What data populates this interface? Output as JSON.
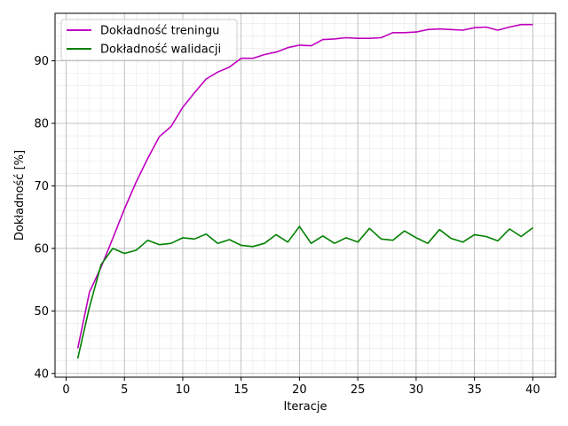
{
  "chart_data": {
    "type": "line",
    "title": "",
    "xlabel": "Iteracje",
    "ylabel": "Dokładność [%]",
    "xlim": [
      -0.95,
      41.95
    ],
    "ylim": [
      39.4,
      97.6
    ],
    "xticks": [
      0,
      5,
      10,
      15,
      20,
      25,
      30,
      35,
      40
    ],
    "yticks": [
      40,
      50,
      60,
      70,
      80,
      90
    ],
    "grid": {
      "major": true,
      "minor": true
    },
    "legend_position": "top-left",
    "x": [
      1,
      2,
      3,
      4,
      5,
      6,
      7,
      8,
      9,
      10,
      11,
      12,
      13,
      14,
      15,
      16,
      17,
      18,
      19,
      20,
      21,
      22,
      23,
      24,
      25,
      26,
      27,
      28,
      29,
      30,
      31,
      32,
      33,
      34,
      35,
      36,
      37,
      38,
      39,
      40
    ],
    "series": [
      {
        "name": "Dokładność treningu",
        "color": "#bf00bf",
        "values": [
          44.0,
          53.0,
          57.0,
          61.6,
          66.3,
          70.6,
          74.4,
          77.9,
          79.5,
          82.6,
          84.9,
          87.1,
          88.2,
          89.0,
          90.4,
          90.4,
          91.0,
          91.4,
          92.1,
          92.5,
          92.4,
          93.4,
          93.5,
          93.7,
          93.6,
          93.6,
          93.7,
          94.5,
          94.5,
          94.6,
          95.0,
          95.1,
          95.0,
          94.9,
          95.3,
          95.4,
          94.9,
          95.4,
          95.8,
          95.8
        ]
      },
      {
        "name": "Dokładność walidacji",
        "color": "#008000",
        "values": [
          42.4,
          50.6,
          57.4,
          60.0,
          59.2,
          59.7,
          61.3,
          60.6,
          60.8,
          61.7,
          61.5,
          62.3,
          60.8,
          61.4,
          60.5,
          60.3,
          60.8,
          62.2,
          61.0,
          63.5,
          60.8,
          62.0,
          60.8,
          61.7,
          61.0,
          63.2,
          61.5,
          61.3,
          62.8,
          61.7,
          60.8,
          63.0,
          61.6,
          61.0,
          62.2,
          61.9,
          61.2,
          63.1,
          61.9,
          63.3
        ]
      }
    ]
  }
}
